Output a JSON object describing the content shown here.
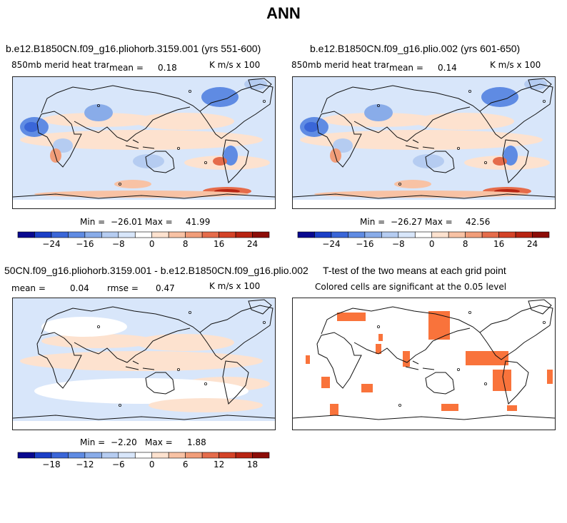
{
  "main_title": "ANN",
  "panels": {
    "p1": {
      "title": "b.e12.B1850CN.f09_g16.pliohorb.3159.001 (yrs 551-600)",
      "left_label": "850mb merid heat transp",
      "mean_label": "mean =",
      "mean_value": "0.18",
      "units": "K m/s x 100",
      "min_label": "Min =",
      "min_value": "−26.01",
      "max_label": "Max =",
      "max_value": "41.99"
    },
    "p2": {
      "title": "b.e12.B1850CN.f09_g16.plio.002 (yrs 601-650)",
      "left_label": "850mb merid heat transp",
      "mean_label": "mean =",
      "mean_value": "0.14",
      "units": "K m/s x 100",
      "min_label": "Min =",
      "min_value": "−26.27",
      "max_label": "Max =",
      "max_value": "42.56"
    },
    "p3": {
      "title": "50CN.f09_g16.pliohorb.3159.001 - b.e12.B1850CN.f09_g16.plio.002",
      "mean_label": "mean =",
      "mean_value": "0.04",
      "rmse_label": "rmse =",
      "rmse_value": "0.47",
      "units": "K m/s x 100",
      "min_label": "Min =",
      "min_value": "−2.20",
      "max_label": "Max =",
      "max_value": "1.88"
    },
    "p4": {
      "title": "T-test of the two means at each grid point",
      "subtitle": "Colored cells are significant at the 0.05 level"
    }
  },
  "chart_data": [
    {
      "type": "heatmap",
      "id": "control_case",
      "title": "b.e12.B1850CN.f09_g16.pliohorb.3159.001 (yrs 551-600)",
      "variable": "850mb merid heat transp",
      "units": "K m/s x 100",
      "mean": 0.18,
      "min": -26.01,
      "max": 41.99,
      "colorbar_ticks": [
        "−24",
        "−16",
        "−8",
        "0",
        "8",
        "16",
        "24"
      ],
      "colorbar_levels": [
        -28,
        -24,
        -20,
        -16,
        -12,
        -8,
        -4,
        0,
        4,
        8,
        12,
        16,
        20,
        24,
        28
      ]
    },
    {
      "type": "heatmap",
      "id": "test_case",
      "title": "b.e12.B1850CN.f09_g16.plio.002 (yrs 601-650)",
      "variable": "850mb merid heat transp",
      "units": "K m/s x 100",
      "mean": 0.14,
      "min": -26.27,
      "max": 42.56,
      "colorbar_ticks": [
        "−24",
        "−16",
        "−8",
        "0",
        "8",
        "16",
        "24"
      ],
      "colorbar_levels": [
        -28,
        -24,
        -20,
        -16,
        -12,
        -8,
        -4,
        0,
        4,
        8,
        12,
        16,
        20,
        24,
        28
      ]
    },
    {
      "type": "heatmap",
      "id": "difference",
      "title": "50CN.f09_g16.pliohorb.3159.001 - b.e12.B1850CN.f09_g16.plio.002",
      "units": "K m/s x 100",
      "mean": 0.04,
      "rmse": 0.47,
      "min": -2.2,
      "max": 1.88,
      "colorbar_ticks": [
        "−18",
        "−12",
        "−6",
        "0",
        "6",
        "12",
        "18"
      ],
      "colorbar_levels": [
        -21,
        -18,
        -15,
        -12,
        -9,
        -6,
        -3,
        0,
        3,
        6,
        9,
        12,
        15,
        18,
        21
      ]
    },
    {
      "type": "heatmap",
      "id": "ttest",
      "title": "T-test of the two means at each grid point",
      "subtitle": "Colored cells are significant at the 0.05 level",
      "significance_level": 0.05
    }
  ],
  "colors": {
    "palette": [
      "#08088f",
      "#1b3fc7",
      "#3a66d8",
      "#5f8be3",
      "#89ace9",
      "#b5ccf1",
      "#d8e6fa",
      "#ffffff",
      "#fde2cf",
      "#f8c2a4",
      "#f19d79",
      "#e56c4b",
      "#d44327",
      "#b82412",
      "#8c0c06"
    ],
    "significant": "#f9733b",
    "coast": "#111111"
  }
}
